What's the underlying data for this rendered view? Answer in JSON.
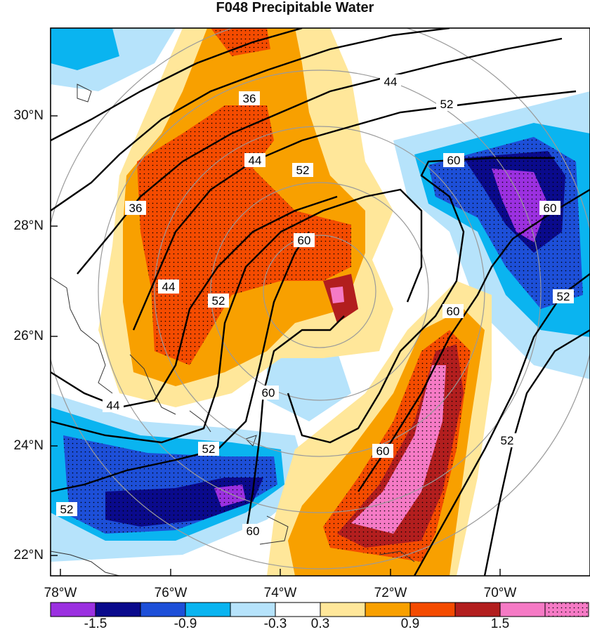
{
  "title": "F048 Precipitable Water",
  "axes": {
    "y_ticks": [
      "30°N",
      "28°N",
      "26°N",
      "24°N",
      "22°N"
    ],
    "x_ticks": [
      "78°W",
      "76°W",
      "74°W",
      "72°W",
      "70°W"
    ]
  },
  "contour_labels": [
    "36",
    "44",
    "52",
    "60",
    "36",
    "44",
    "52",
    "60",
    "44",
    "52",
    "60",
    "44",
    "52",
    "60",
    "52",
    "60",
    "60",
    "52",
    "60",
    "52"
  ],
  "colorbar": {
    "tick_labels": [
      "-1.5",
      "-0.9",
      "-0.3",
      "0.3",
      "0.9",
      "1.5"
    ],
    "colors": [
      "#9b30e0",
      "#0a0a8c",
      "#1d4fd8",
      "#0ab4f0",
      "#b6e3fb",
      "#ffffff",
      "#ffe79a",
      "#f8a000",
      "#f44b00",
      "#b21e1e",
      "#f57ac5"
    ]
  },
  "colors": {
    "frame": "#000000",
    "coast": "#333333",
    "range_rings": "#9a9a9a",
    "contours": "#000000"
  }
}
